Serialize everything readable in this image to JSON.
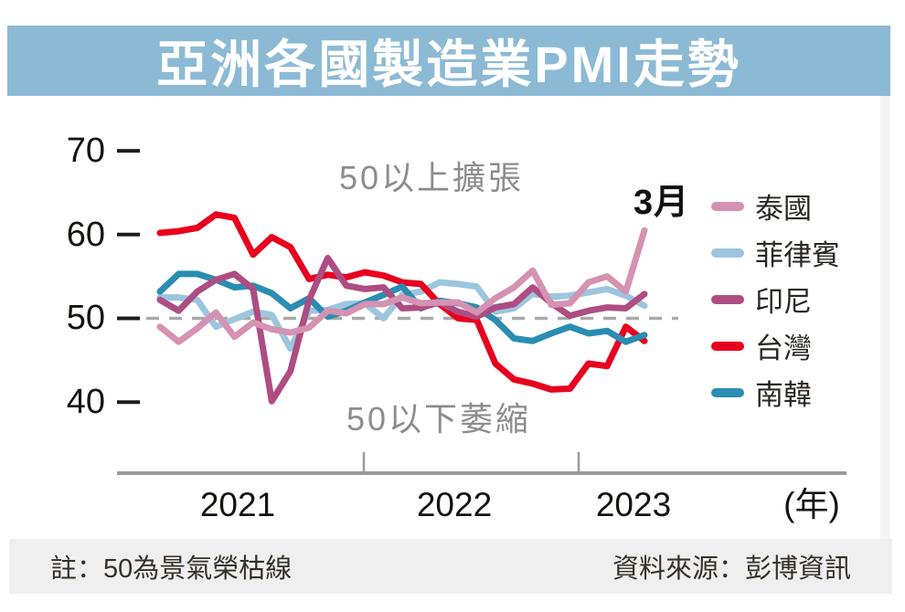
{
  "title": "亞洲各國製造業PMI走勢",
  "annotations": {
    "above_line": "50以上擴張",
    "below_line": "50以下萎縮",
    "latest_month": "3月"
  },
  "axis": {
    "yticks": [
      "70",
      "60",
      "50",
      "40"
    ],
    "xticks": [
      "2021",
      "2022",
      "2023"
    ],
    "x_unit": "(年)"
  },
  "footer": {
    "note": "註：50為景氣榮枯線",
    "source": "資料來源：彭博資訊"
  },
  "chart_data": {
    "type": "line",
    "title": "亞洲各國製造業PMI走勢",
    "x_start": "2021-01",
    "x_end": "2023-03",
    "frequency": "monthly",
    "points_per_series": 27,
    "yticks": [
      70,
      60,
      50,
      40
    ],
    "baseline": 50,
    "baseline_style": "dashed-gray",
    "grid": false,
    "legend_position": "right",
    "draw_order": [
      1,
      3,
      4,
      2,
      0
    ],
    "series": [
      {
        "key": "thailand",
        "name": "泰國",
        "color": "#d592b2",
        "values": [
          49.0,
          47.2,
          48.8,
          50.7,
          47.8,
          49.5,
          48.7,
          48.3,
          48.9,
          50.9,
          50.6,
          51.7,
          51.7,
          52.5,
          51.8,
          51.9,
          51.9,
          50.7,
          52.4,
          53.7,
          55.7,
          51.6,
          51.8,
          54.3,
          55.0,
          53.2,
          60.5
        ]
      },
      {
        "key": "philippines",
        "name": "菲律賓",
        "color": "#9cc6df",
        "values": [
          52.5,
          52.5,
          52.2,
          49.0,
          49.9,
          50.8,
          50.4,
          46.4,
          50.9,
          51.0,
          51.7,
          51.8,
          50.0,
          52.8,
          53.2,
          54.3,
          54.1,
          53.8,
          50.8,
          51.2,
          52.9,
          52.6,
          52.7,
          53.1,
          53.5,
          52.7,
          51.5
        ]
      },
      {
        "key": "indonesia",
        "name": "印尼",
        "color": "#ae4d82",
        "values": [
          52.2,
          50.9,
          53.2,
          54.6,
          55.3,
          53.5,
          40.1,
          43.7,
          52.2,
          57.2,
          53.9,
          53.5,
          53.7,
          51.2,
          51.3,
          51.9,
          50.8,
          50.2,
          51.3,
          51.7,
          53.7,
          51.8,
          50.3,
          50.9,
          51.3,
          51.2,
          52.9
        ]
      },
      {
        "key": "taiwan",
        "name": "台灣",
        "color": "#e8001f",
        "values": [
          60.2,
          60.4,
          60.8,
          62.4,
          62.0,
          57.6,
          59.7,
          58.5,
          54.7,
          55.2,
          54.9,
          55.5,
          55.1,
          54.3,
          54.1,
          51.7,
          50.0,
          49.8,
          44.6,
          42.7,
          42.2,
          41.5,
          41.6,
          44.6,
          44.3,
          49.0,
          47.3
        ]
      },
      {
        "key": "south-korea",
        "name": "南韓",
        "color": "#2b8db3",
        "values": [
          53.2,
          55.3,
          55.3,
          54.6,
          53.7,
          53.9,
          53.0,
          51.2,
          52.4,
          50.2,
          50.9,
          51.9,
          52.8,
          53.8,
          51.2,
          52.1,
          51.8,
          51.3,
          49.8,
          47.6,
          47.3,
          48.2,
          49.0,
          48.2,
          48.5,
          47.2,
          48.0
        ]
      }
    ],
    "colors": {
      "title_band": "#8cbad5",
      "baseline_dash": "#a9a9a9",
      "axis_line": "#9b9b9b",
      "annotation_gray": "#8d8d8d",
      "footer_bg": "#efefef"
    }
  }
}
